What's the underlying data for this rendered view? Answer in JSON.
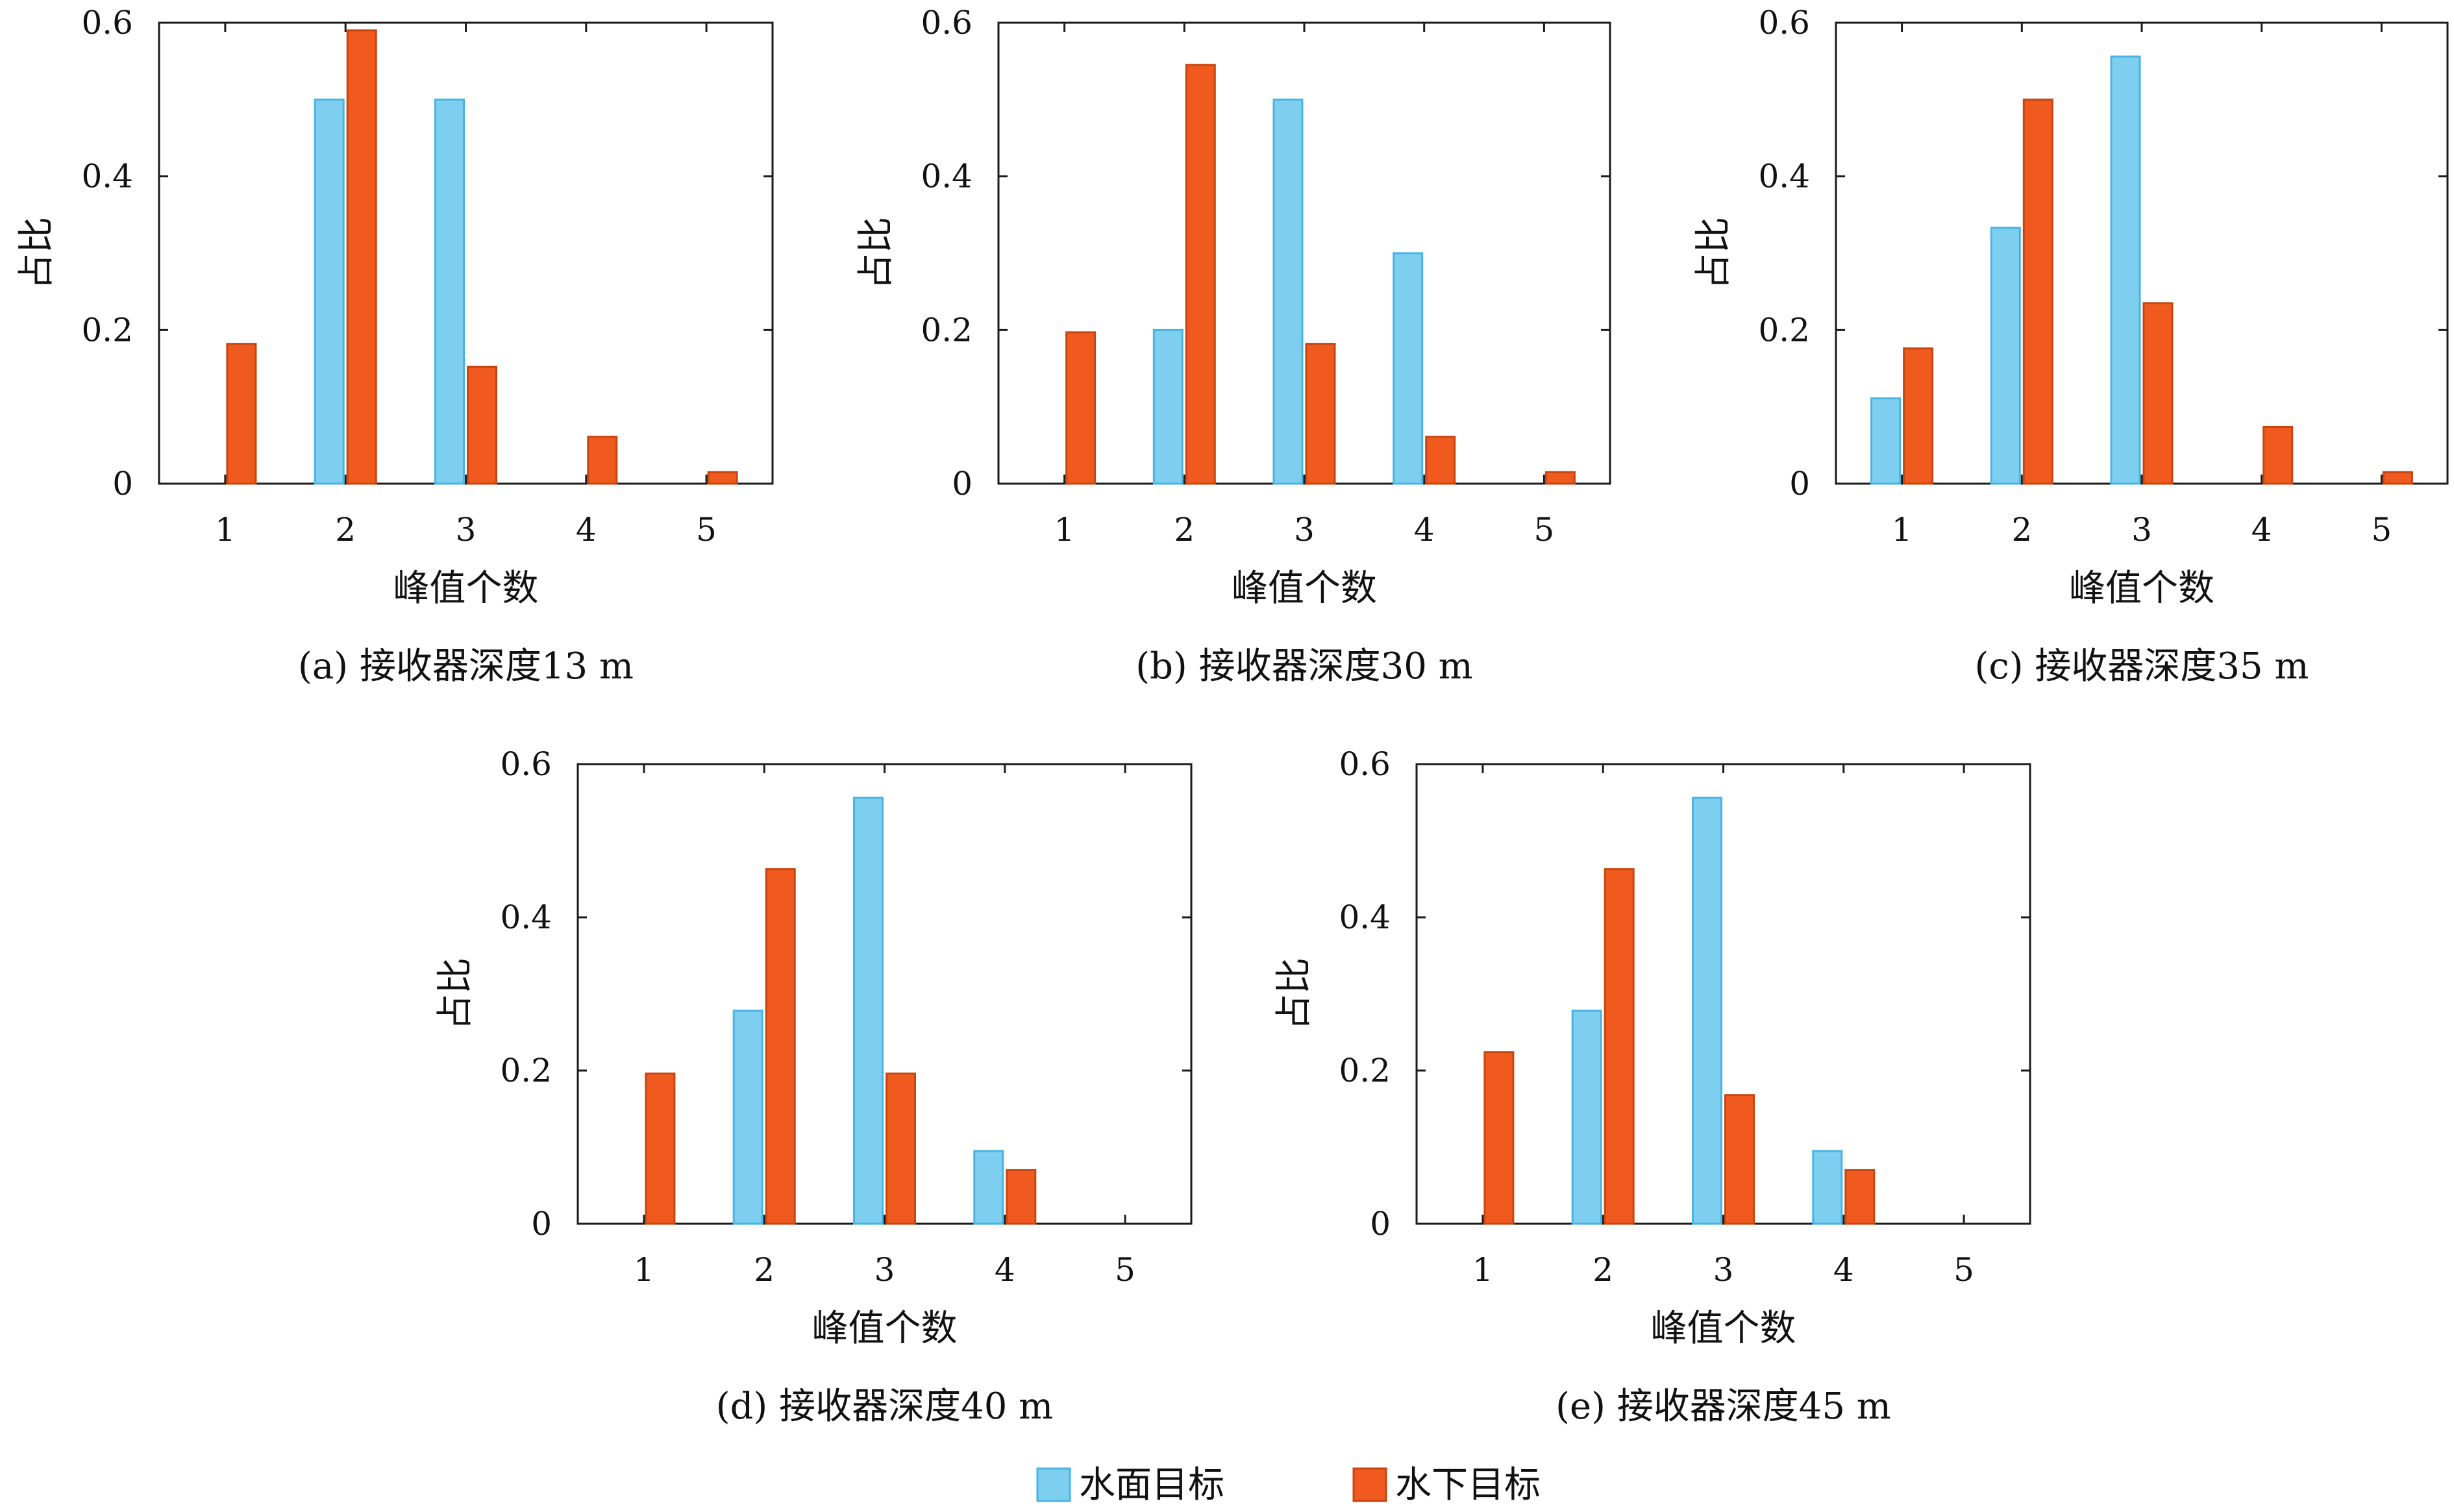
{
  "chart_data": [
    {
      "type": "bar",
      "caption": "(a) 接收器深度13 m",
      "xlabel": "峰值个数",
      "ylabel": "占比",
      "categories": [
        "1",
        "2",
        "3",
        "4",
        "5"
      ],
      "ylim": [
        0,
        0.6
      ],
      "yticks": [
        "0",
        "0.2",
        "0.4",
        "0.6"
      ],
      "grid": false,
      "series": [
        {
          "name": "水面目标",
          "values": [
            0,
            0.5,
            0.5,
            0,
            0
          ]
        },
        {
          "name": "水下目标",
          "values": [
            0.182,
            0.59,
            0.152,
            0.061,
            0.015
          ]
        }
      ]
    },
    {
      "type": "bar",
      "caption": "(b) 接收器深度30 m",
      "xlabel": "峰值个数",
      "ylabel": "占比",
      "categories": [
        "1",
        "2",
        "3",
        "4",
        "5"
      ],
      "ylim": [
        0,
        0.6
      ],
      "yticks": [
        "0",
        "0.2",
        "0.4",
        "0.6"
      ],
      "grid": false,
      "series": [
        {
          "name": "水面目标",
          "values": [
            0,
            0.2,
            0.5,
            0.3,
            0
          ]
        },
        {
          "name": "水下目标",
          "values": [
            0.197,
            0.545,
            0.182,
            0.061,
            0.015
          ]
        }
      ]
    },
    {
      "type": "bar",
      "caption": "(c) 接收器深度35 m",
      "xlabel": "峰值个数",
      "ylabel": "占比",
      "categories": [
        "1",
        "2",
        "3",
        "4",
        "5"
      ],
      "ylim": [
        0,
        0.6
      ],
      "yticks": [
        "0",
        "0.2",
        "0.4",
        "0.6"
      ],
      "grid": false,
      "series": [
        {
          "name": "水面目标",
          "values": [
            0.111,
            0.333,
            0.556,
            0,
            0
          ]
        },
        {
          "name": "水下目标",
          "values": [
            0.176,
            0.5,
            0.235,
            0.074,
            0.015
          ]
        }
      ]
    },
    {
      "type": "bar",
      "caption": "(d) 接收器深度40 m",
      "xlabel": "峰值个数",
      "ylabel": "占比",
      "categories": [
        "1",
        "2",
        "3",
        "4",
        "5"
      ],
      "ylim": [
        0,
        0.6
      ],
      "yticks": [
        "0",
        "0.2",
        "0.4",
        "0.6"
      ],
      "grid": false,
      "series": [
        {
          "name": "水面目标",
          "values": [
            0,
            0.278,
            0.556,
            0.095,
            0
          ]
        },
        {
          "name": "水下目标",
          "values": [
            0.196,
            0.463,
            0.196,
            0.07,
            0
          ]
        }
      ]
    },
    {
      "type": "bar",
      "caption": "(e) 接收器深度45 m",
      "xlabel": "峰值个数",
      "ylabel": "占比",
      "categories": [
        "1",
        "2",
        "3",
        "4",
        "5"
      ],
      "ylim": [
        0,
        0.6
      ],
      "yticks": [
        "0",
        "0.2",
        "0.4",
        "0.6"
      ],
      "grid": false,
      "series": [
        {
          "name": "水面目标",
          "values": [
            0,
            0.278,
            0.556,
            0.095,
            0
          ]
        },
        {
          "name": "水下目标",
          "values": [
            0.224,
            0.463,
            0.168,
            0.07,
            0
          ]
        }
      ]
    }
  ],
  "legend": {
    "placement": "bottom-center",
    "items": [
      {
        "label": "水面目标",
        "color": "#7ecef0",
        "border": "#47b4e4"
      },
      {
        "label": "水下目标",
        "color": "#f05a1e",
        "border": "#c8450f"
      }
    ]
  }
}
